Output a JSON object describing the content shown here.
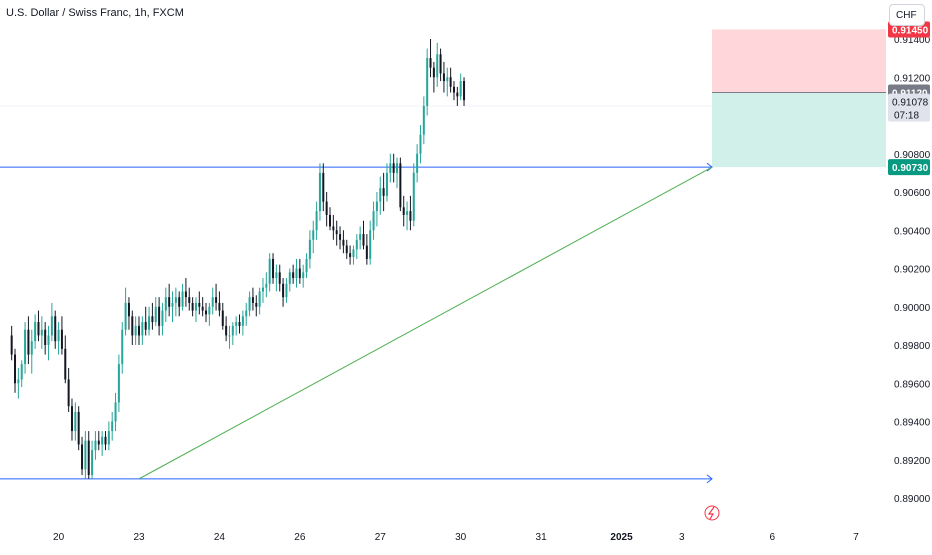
{
  "header": {
    "symbol_title": "U.S. Dollar / Swiss Franc, 1h, FXCM",
    "currency": "CHF"
  },
  "price_labels": {
    "stop": "0.91450",
    "entry": "0.91120",
    "last": "0.91078",
    "countdown": "07:18",
    "target": "0.90730"
  },
  "colors": {
    "bull": "#26a69a",
    "bear": "#131722",
    "stop": "#f23645",
    "target": "#089981",
    "stop_zone": "#ffd6da",
    "target_zone": "#d1f0ea",
    "hline": "#2962ff",
    "trendline": "#4caf50",
    "entry": "#787b86",
    "grid": "#f0f3fa"
  },
  "icons": {
    "alert": "lightning-icon"
  },
  "chart_data": {
    "type": "candlestick",
    "title": "U.S. Dollar / Swiss Franc, 1h, FXCM",
    "ylim": [
      0.889,
      0.9155
    ],
    "yticks": [
      "0.91400",
      "0.91200",
      "0.90800",
      "0.90600",
      "0.90400",
      "0.90200",
      "0.90000",
      "0.89800",
      "0.89600",
      "0.89400",
      "0.89200",
      "0.89000"
    ],
    "xticks": [
      {
        "label": "20",
        "t": 14
      },
      {
        "label": "23",
        "t": 38
      },
      {
        "label": "24",
        "t": 62
      },
      {
        "label": "26",
        "t": 86
      },
      {
        "label": "27",
        "t": 110
      },
      {
        "label": "30",
        "t": 134
      },
      {
        "label": "31",
        "t": 158
      },
      {
        "label": "2025",
        "t": 182
      },
      {
        "label": "3",
        "t": 200
      },
      {
        "label": "6",
        "t": 227
      },
      {
        "label": "7",
        "t": 252
      }
    ],
    "horizontal_lines": [
      0.9073,
      0.891
    ],
    "trendline": {
      "from": [
        38,
        0.891
      ],
      "to": [
        209,
        0.9073
      ]
    },
    "position": {
      "entry": 0.9112,
      "stop": 0.9145,
      "target": 0.9073,
      "t_start": 209,
      "t_end": 262
    },
    "candles": [
      [
        0.8985,
        0.899,
        0.8972,
        0.8975
      ],
      [
        0.8975,
        0.8978,
        0.8955,
        0.896
      ],
      [
        0.896,
        0.8968,
        0.8952,
        0.8962
      ],
      [
        0.8962,
        0.8972,
        0.8958,
        0.897
      ],
      [
        0.897,
        0.8992,
        0.8965,
        0.8988
      ],
      [
        0.8988,
        0.8995,
        0.897,
        0.8975
      ],
      [
        0.8975,
        0.8988,
        0.8965,
        0.8982
      ],
      [
        0.8982,
        0.8996,
        0.8978,
        0.8992
      ],
      [
        0.8992,
        0.8998,
        0.8982,
        0.8985
      ],
      [
        0.8985,
        0.8995,
        0.8978,
        0.8988
      ],
      [
        0.8988,
        0.8992,
        0.8975,
        0.898
      ],
      [
        0.898,
        0.899,
        0.8972,
        0.8985
      ],
      [
        0.8985,
        0.9002,
        0.8982,
        0.8995
      ],
      [
        0.8995,
        0.8998,
        0.8978,
        0.8982
      ],
      [
        0.8982,
        0.8992,
        0.8975,
        0.8988
      ],
      [
        0.8988,
        0.8995,
        0.8975,
        0.8978
      ],
      [
        0.8978,
        0.8985,
        0.896,
        0.8962
      ],
      [
        0.8962,
        0.8968,
        0.8945,
        0.8948
      ],
      [
        0.8948,
        0.8952,
        0.893,
        0.8935
      ],
      [
        0.8935,
        0.895,
        0.893,
        0.8945
      ],
      [
        0.8945,
        0.8948,
        0.8925,
        0.8928
      ],
      [
        0.8928,
        0.8932,
        0.8912,
        0.8915
      ],
      [
        0.8915,
        0.8935,
        0.891,
        0.893
      ],
      [
        0.893,
        0.8935,
        0.891,
        0.8912
      ],
      [
        0.8912,
        0.893,
        0.891,
        0.8925
      ],
      [
        0.8925,
        0.8935,
        0.892,
        0.893
      ],
      [
        0.893,
        0.8935,
        0.8925,
        0.8928
      ],
      [
        0.8928,
        0.8935,
        0.8922,
        0.8932
      ],
      [
        0.8932,
        0.8935,
        0.8925,
        0.8928
      ],
      [
        0.8928,
        0.894,
        0.8925,
        0.8935
      ],
      [
        0.8935,
        0.8945,
        0.893,
        0.894
      ],
      [
        0.894,
        0.8955,
        0.8935,
        0.895
      ],
      [
        0.895,
        0.8975,
        0.8945,
        0.897
      ],
      [
        0.897,
        0.8992,
        0.8965,
        0.8988
      ],
      [
        0.8988,
        0.901,
        0.8985,
        0.9002
      ],
      [
        0.9002,
        0.9005,
        0.8988,
        0.8995
      ],
      [
        0.8995,
        0.8998,
        0.898,
        0.8985
      ],
      [
        0.8985,
        0.8995,
        0.898,
        0.899
      ],
      [
        0.899,
        0.8995,
        0.898,
        0.8985
      ],
      [
        0.8985,
        0.8995,
        0.898,
        0.8992
      ],
      [
        0.8992,
        0.9,
        0.8985,
        0.8988
      ],
      [
        0.8988,
        0.9,
        0.8985,
        0.8995
      ],
      [
        0.8995,
        0.9002,
        0.8988,
        0.8992
      ],
      [
        0.8992,
        0.9005,
        0.899,
        0.9
      ],
      [
        0.9,
        0.9005,
        0.8985,
        0.899
      ],
      [
        0.899,
        0.9002,
        0.8985,
        0.8998
      ],
      [
        0.8998,
        0.901,
        0.8992,
        0.9005
      ],
      [
        0.9005,
        0.9012,
        0.8995,
        0.9
      ],
      [
        0.9,
        0.9008,
        0.8992,
        0.9002
      ],
      [
        0.9002,
        0.901,
        0.8995,
        0.9005
      ],
      [
        0.9005,
        0.9008,
        0.8995,
        0.9
      ],
      [
        0.9,
        0.9012,
        0.8998,
        0.9008
      ],
      [
        0.9008,
        0.9015,
        0.9,
        0.9005
      ],
      [
        0.9005,
        0.901,
        0.8998,
        0.9002
      ],
      [
        0.9002,
        0.9005,
        0.8995,
        0.8998
      ],
      [
        0.8998,
        0.9005,
        0.8992,
        0.9002
      ],
      [
        0.9002,
        0.9008,
        0.8996,
        0.9
      ],
      [
        0.9,
        0.9005,
        0.8995,
        0.8998
      ],
      [
        0.8998,
        0.9002,
        0.8992,
        0.8996
      ],
      [
        0.8996,
        0.9002,
        0.899,
        0.9
      ],
      [
        0.9,
        0.901,
        0.8996,
        0.9005
      ],
      [
        0.9005,
        0.9012,
        0.8998,
        0.9002
      ],
      [
        0.9002,
        0.9008,
        0.8995,
        0.8998
      ],
      [
        0.8998,
        0.9002,
        0.8988,
        0.899
      ],
      [
        0.899,
        0.8995,
        0.8982,
        0.8985
      ],
      [
        0.8985,
        0.899,
        0.8978,
        0.8985
      ],
      [
        0.8985,
        0.8992,
        0.898,
        0.899
      ],
      [
        0.899,
        0.8995,
        0.8985,
        0.8992
      ],
      [
        0.8992,
        0.8996,
        0.8986,
        0.899
      ],
      [
        0.899,
        0.8998,
        0.8985,
        0.8995
      ],
      [
        0.8995,
        0.9002,
        0.899,
        0.8998
      ],
      [
        0.8998,
        0.9008,
        0.8995,
        0.9005
      ],
      [
        0.9005,
        0.901,
        0.8998,
        0.9002
      ],
      [
        0.9002,
        0.9006,
        0.8995,
        0.9
      ],
      [
        0.9,
        0.901,
        0.8996,
        0.9008
      ],
      [
        0.9008,
        0.9015,
        0.9002,
        0.901
      ],
      [
        0.901,
        0.9018,
        0.9005,
        0.9012
      ],
      [
        0.9012,
        0.9028,
        0.9008,
        0.9025
      ],
      [
        0.9025,
        0.9028,
        0.9012,
        0.9015
      ],
      [
        0.9015,
        0.9022,
        0.9008,
        0.9018
      ],
      [
        0.9018,
        0.9022,
        0.9008,
        0.9012
      ],
      [
        0.9012,
        0.9015,
        0.9,
        0.9005
      ],
      [
        0.9005,
        0.9015,
        0.9002,
        0.9012
      ],
      [
        0.9012,
        0.902,
        0.9008,
        0.9018
      ],
      [
        0.9018,
        0.9022,
        0.9012,
        0.9015
      ],
      [
        0.9015,
        0.9025,
        0.901,
        0.902
      ],
      [
        0.902,
        0.9025,
        0.9012,
        0.9015
      ],
      [
        0.9015,
        0.9022,
        0.901,
        0.9018
      ],
      [
        0.9018,
        0.9028,
        0.9015,
        0.9025
      ],
      [
        0.9025,
        0.904,
        0.902,
        0.9035
      ],
      [
        0.9035,
        0.9045,
        0.9028,
        0.904
      ],
      [
        0.904,
        0.9055,
        0.9035,
        0.905
      ],
      [
        0.905,
        0.9075,
        0.9045,
        0.907
      ],
      [
        0.907,
        0.9075,
        0.905,
        0.9055
      ],
      [
        0.9055,
        0.906,
        0.9042,
        0.9048
      ],
      [
        0.9048,
        0.9052,
        0.904,
        0.9042
      ],
      [
        0.9042,
        0.9048,
        0.9035,
        0.904
      ],
      [
        0.904,
        0.9045,
        0.9032,
        0.9038
      ],
      [
        0.9038,
        0.9042,
        0.903,
        0.9035
      ],
      [
        0.9035,
        0.904,
        0.9028,
        0.9032
      ],
      [
        0.9032,
        0.9035,
        0.9025,
        0.9028
      ],
      [
        0.9028,
        0.9032,
        0.9022,
        0.9026
      ],
      [
        0.9026,
        0.9032,
        0.9022,
        0.903
      ],
      [
        0.903,
        0.9038,
        0.9025,
        0.9035
      ],
      [
        0.9035,
        0.9042,
        0.903,
        0.9038
      ],
      [
        0.9038,
        0.9045,
        0.903,
        0.9032
      ],
      [
        0.9032,
        0.9038,
        0.9022,
        0.9025
      ],
      [
        0.9025,
        0.9045,
        0.9022,
        0.904
      ],
      [
        0.904,
        0.9055,
        0.9035,
        0.905
      ],
      [
        0.905,
        0.906,
        0.9042,
        0.9055
      ],
      [
        0.9055,
        0.9068,
        0.9048,
        0.9062
      ],
      [
        0.9062,
        0.907,
        0.905,
        0.9058
      ],
      [
        0.9058,
        0.9075,
        0.9055,
        0.907
      ],
      [
        0.907,
        0.908,
        0.9065,
        0.9075
      ],
      [
        0.9075,
        0.908,
        0.9065,
        0.907
      ],
      [
        0.907,
        0.9078,
        0.9062,
        0.9075
      ],
      [
        0.9075,
        0.9078,
        0.905,
        0.9052
      ],
      [
        0.9052,
        0.9058,
        0.9042,
        0.9048
      ],
      [
        0.9048,
        0.9055,
        0.904,
        0.905
      ],
      [
        0.905,
        0.9058,
        0.904,
        0.9045
      ],
      [
        0.9045,
        0.9075,
        0.9042,
        0.907
      ],
      [
        0.907,
        0.9085,
        0.9065,
        0.908
      ],
      [
        0.908,
        0.9095,
        0.9075,
        0.909
      ],
      [
        0.909,
        0.911,
        0.9085,
        0.9105
      ],
      [
        0.9105,
        0.9135,
        0.91,
        0.913
      ],
      [
        0.913,
        0.914,
        0.912,
        0.9125
      ],
      [
        0.9125,
        0.9128,
        0.9112,
        0.912
      ],
      [
        0.912,
        0.9138,
        0.9115,
        0.9132
      ],
      [
        0.9132,
        0.9135,
        0.9118,
        0.9122
      ],
      [
        0.9122,
        0.9128,
        0.9112,
        0.9118
      ],
      [
        0.9118,
        0.9125,
        0.911,
        0.912
      ],
      [
        0.912,
        0.9125,
        0.9112,
        0.9115
      ],
      [
        0.9115,
        0.9118,
        0.9108,
        0.9112
      ],
      [
        0.9112,
        0.9115,
        0.9105,
        0.911
      ],
      [
        0.911,
        0.9122,
        0.9108,
        0.9118
      ],
      [
        0.9118,
        0.912,
        0.9105,
        0.9108
      ]
    ]
  }
}
